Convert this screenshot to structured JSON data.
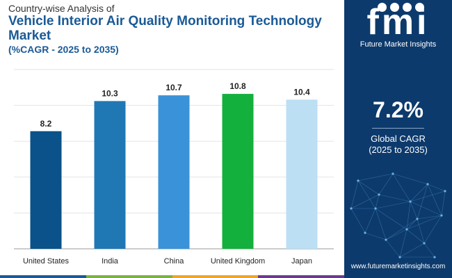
{
  "header": {
    "subtitle": "Country-wise Analysis of",
    "title_line1": "Vehicle Interior Air Quality Monitoring Technology",
    "title_line2": "Market",
    "range": "(%CAGR - 2025 to 2035)"
  },
  "chart_data": {
    "type": "bar",
    "categories": [
      "United States",
      "India",
      "China",
      "United Kingdom",
      "Japan"
    ],
    "values": [
      8.2,
      10.3,
      10.7,
      10.8,
      10.4
    ],
    "value_labels": [
      "8.2",
      "10.3",
      "10.7",
      "10.8",
      "10.4"
    ],
    "colors": [
      "#0a5289",
      "#1f78b4",
      "#3a93d9",
      "#13b03d",
      "#bcdff4"
    ],
    "ylim": [
      0,
      12.5
    ],
    "grid": true,
    "title": "Vehicle Interior Air Quality Monitoring Technology Market",
    "xlabel": "",
    "ylabel": ""
  },
  "panel": {
    "logo_text": "fmi",
    "logo_name": "Future Market Insights",
    "cagr_value": "7.2%",
    "cagr_label": "Global CAGR",
    "cagr_period": "(2025 to 2035)",
    "website": "www.futuremarketinsights.com",
    "background": "#0d3a6c"
  },
  "strip_colors": [
    "#1a5a96",
    "#7ab33f",
    "#f0a526",
    "#6b3a8c"
  ]
}
